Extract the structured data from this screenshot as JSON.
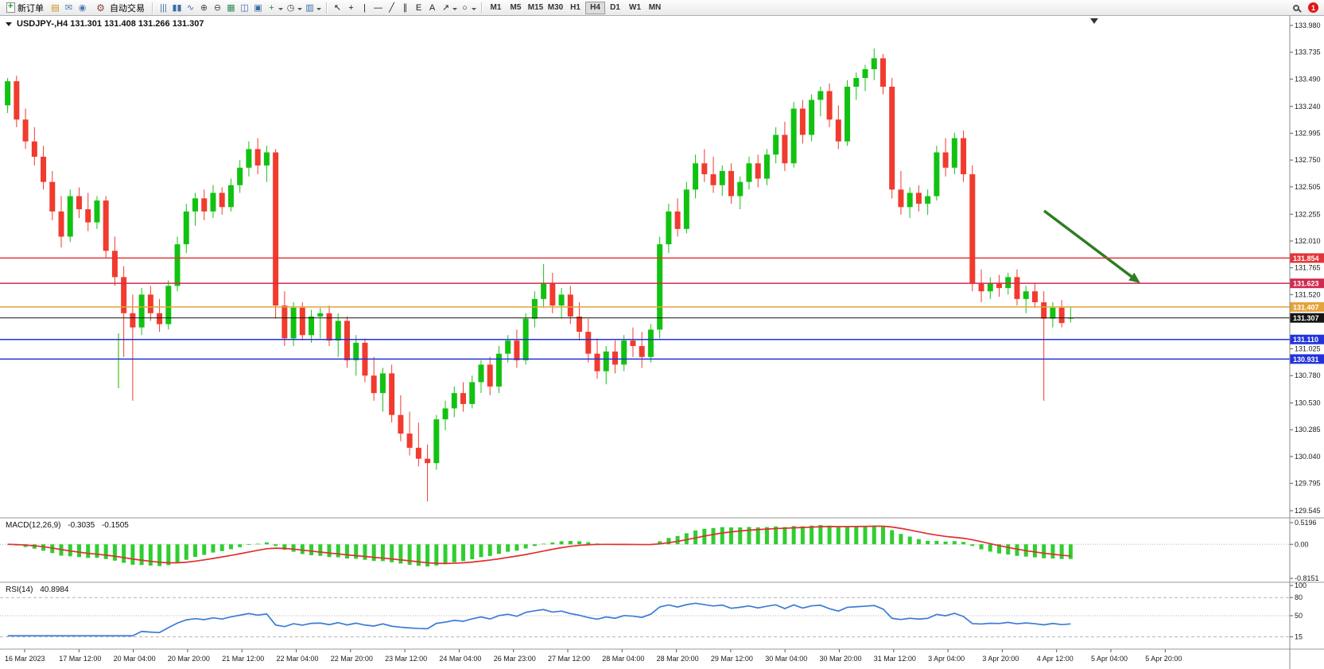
{
  "toolbar": {
    "new_order_label": "新订单",
    "autotrading_label": "自动交易",
    "left_icons": [
      {
        "name": "charts-window-icon",
        "glyph": "▤",
        "color": "#c89020"
      },
      {
        "name": "mail-icon",
        "glyph": "✉",
        "color": "#4a7ab5"
      },
      {
        "name": "community-icon",
        "glyph": "◉",
        "color": "#4a7ab5"
      }
    ],
    "chart_tools": [
      {
        "name": "bar-chart-icon",
        "glyph": "|||",
        "color": "#3a6ea5"
      },
      {
        "name": "candlestick-chart-icon",
        "glyph": "▮▮",
        "color": "#3a6ea5"
      },
      {
        "name": "line-chart-icon",
        "glyph": "∿",
        "color": "#3a6ea5"
      },
      {
        "name": "zoom-in-icon",
        "glyph": "⊕",
        "color": "#454545"
      },
      {
        "name": "zoom-out-icon",
        "glyph": "⊖",
        "color": "#454545"
      },
      {
        "name": "grid-icon",
        "glyph": "▦",
        "color": "#2e8b57"
      },
      {
        "name": "tile-windows-icon",
        "glyph": "◫",
        "color": "#3a6ea5"
      },
      {
        "name": "cascade-windows-icon",
        "glyph": "▣",
        "color": "#3a6ea5"
      },
      {
        "name": "indicators-icon",
        "glyph": "+",
        "color": "#1e8b3e",
        "dropdown": true
      },
      {
        "name": "periods-icon",
        "glyph": "◷",
        "color": "#454545",
        "dropdown": true
      },
      {
        "name": "templates-icon",
        "glyph": "▥",
        "color": "#3a6ea5",
        "dropdown": true
      }
    ],
    "draw_tools": [
      {
        "name": "cursor-icon",
        "glyph": "↖",
        "color": "#222222"
      },
      {
        "name": "crosshair-icon",
        "glyph": "+",
        "color": "#222222"
      },
      {
        "name": "vertical-line-icon",
        "glyph": "|",
        "color": "#222222"
      },
      {
        "name": "horizontal-line-icon",
        "glyph": "—",
        "color": "#222222"
      },
      {
        "name": "trendline-icon",
        "glyph": "╱",
        "color": "#222222"
      },
      {
        "name": "channel-icon",
        "glyph": "∥",
        "color": "#222222"
      },
      {
        "name": "fibonacci-icon",
        "glyph": "E",
        "color": "#222222"
      },
      {
        "name": "text-icon",
        "glyph": "A",
        "color": "#222222"
      },
      {
        "name": "arrows-icon",
        "glyph": "↗",
        "color": "#222222",
        "dropdown": true
      },
      {
        "name": "shapes-icon",
        "glyph": "○",
        "color": "#222222",
        "dropdown": true
      }
    ],
    "timeframes": [
      "M1",
      "M5",
      "M15",
      "M30",
      "H1",
      "H4",
      "D1",
      "W1",
      "MN"
    ],
    "active_timeframe": "H4",
    "notification_badge": "1"
  },
  "chart": {
    "symbol_header": "USDJPY-,H4 131.301 131.408 131.266 131.307",
    "price_axis_labels": [
      "133.980",
      "133.735",
      "133.490",
      "133.240",
      "132.995",
      "132.750",
      "132.505",
      "132.255",
      "132.010",
      "131.765",
      "131.520",
      "131.025",
      "130.780",
      "130.530",
      "130.285",
      "130.040",
      "129.795",
      "129.545"
    ],
    "levels": [
      {
        "price": 131.854,
        "label": "131.854",
        "color": "#e23535"
      },
      {
        "price": 131.623,
        "label": "131.623",
        "color": "#d02a50"
      },
      {
        "price": 131.407,
        "label": "131.407",
        "color": "#e6a23c"
      },
      {
        "price": 131.307,
        "label": "131.307",
        "color": "#151515",
        "bid": true
      },
      {
        "price": 131.11,
        "label": "131.110",
        "color": "#2233dd"
      },
      {
        "price": 130.931,
        "label": "130.931",
        "color": "#2233dd"
      }
    ],
    "bull_color": "#12c212",
    "bear_color": "#f03b2e",
    "arrow_color": "#2e7d22",
    "marker_color": "#66cc44"
  },
  "macd": {
    "title": "MACD(12,26,9)",
    "value_main": "-0.3035",
    "value_signal": "-0.1505",
    "scale_labels": [
      "0.5196",
      "0.00",
      "-0.8151"
    ],
    "range": [
      -0.8151,
      0.5196
    ],
    "hist_color": "#2fce2f",
    "signal_color": "#e03030"
  },
  "rsi": {
    "title": "RSI(14)",
    "value": "40.8984",
    "scale_labels": [
      "100",
      "80",
      "50",
      "15"
    ],
    "levels": [
      80,
      50,
      15
    ],
    "line_color": "#3b7bd6",
    "range": [
      0,
      100
    ]
  },
  "chart_data": {
    "type": "candlestick",
    "symbol": "USDJPY-",
    "timeframe": "H4",
    "quote_open": "131.301",
    "quote_high": "131.408",
    "quote_low": "131.266",
    "quote_close": "131.307",
    "ylim": [
      129.545,
      133.98
    ],
    "x_labels": [
      "16 Mar 2023",
      "17 Mar 12:00",
      "20 Mar 04:00",
      "20 Mar 20:00",
      "21 Mar 12:00",
      "22 Mar 04:00",
      "22 Mar 20:00",
      "23 Mar 12:00",
      "24 Mar 04:00",
      "26 Mar 23:00",
      "27 Mar 12:00",
      "28 Mar 04:00",
      "28 Mar 20:00",
      "29 Mar 12:00",
      "30 Mar 04:00",
      "30 Mar 20:00",
      "31 Mar 12:00",
      "3 Apr 04:00",
      "3 Apr 20:00",
      "4 Apr 12:00",
      "5 Apr 04:00",
      "5 Apr 20:00"
    ],
    "indicators": {
      "macd": {
        "fast": 12,
        "slow": 26,
        "signal": 9
      },
      "rsi": {
        "period": 14
      }
    },
    "ohlc": [
      [
        133.25,
        133.5,
        133.18,
        133.47
      ],
      [
        133.47,
        133.52,
        133.05,
        133.12
      ],
      [
        133.12,
        133.22,
        132.85,
        132.92
      ],
      [
        132.92,
        133.05,
        132.7,
        132.78
      ],
      [
        132.78,
        132.88,
        132.48,
        132.55
      ],
      [
        132.55,
        132.65,
        132.2,
        132.28
      ],
      [
        132.28,
        132.42,
        131.95,
        132.05
      ],
      [
        132.05,
        132.48,
        132.0,
        132.42
      ],
      [
        132.42,
        132.5,
        132.22,
        132.3
      ],
      [
        132.3,
        132.45,
        132.1,
        132.18
      ],
      [
        132.18,
        132.42,
        132.12,
        132.38
      ],
      [
        132.38,
        132.42,
        131.85,
        131.92
      ],
      [
        131.92,
        132.05,
        131.6,
        131.68
      ],
      [
        131.68,
        131.78,
        130.95,
        131.35
      ],
      [
        131.35,
        131.52,
        130.55,
        131.22
      ],
      [
        131.22,
        131.58,
        131.15,
        131.52
      ],
      [
        131.52,
        131.6,
        131.28,
        131.35
      ],
      [
        131.35,
        131.48,
        131.18,
        131.25
      ],
      [
        131.25,
        131.65,
        131.2,
        131.6
      ],
      [
        131.6,
        132.05,
        131.55,
        131.98
      ],
      [
        131.98,
        132.35,
        131.9,
        132.28
      ],
      [
        132.28,
        132.45,
        132.15,
        132.4
      ],
      [
        132.4,
        132.48,
        132.2,
        132.28
      ],
      [
        132.28,
        132.52,
        132.22,
        132.45
      ],
      [
        132.45,
        132.5,
        132.25,
        132.32
      ],
      [
        132.32,
        132.58,
        132.28,
        132.52
      ],
      [
        132.52,
        132.75,
        132.45,
        132.68
      ],
      [
        132.68,
        132.92,
        132.6,
        132.85
      ],
      [
        132.85,
        132.95,
        132.62,
        132.7
      ],
      [
        132.7,
        132.88,
        132.55,
        132.82
      ],
      [
        132.82,
        132.85,
        131.3,
        131.42
      ],
      [
        131.42,
        131.55,
        131.05,
        131.12
      ],
      [
        131.12,
        131.45,
        131.05,
        131.4
      ],
      [
        131.4,
        131.45,
        131.1,
        131.15
      ],
      [
        131.15,
        131.38,
        131.08,
        131.32
      ],
      [
        131.32,
        131.4,
        131.12,
        131.35
      ],
      [
        131.35,
        131.42,
        131.05,
        131.1
      ],
      [
        131.1,
        131.35,
        130.95,
        131.28
      ],
      [
        131.28,
        131.32,
        130.85,
        130.92
      ],
      [
        130.92,
        131.15,
        130.78,
        131.08
      ],
      [
        131.08,
        131.12,
        130.72,
        130.78
      ],
      [
        130.78,
        130.95,
        130.55,
        130.62
      ],
      [
        130.62,
        130.85,
        130.45,
        130.8
      ],
      [
        130.8,
        130.88,
        130.35,
        130.42
      ],
      [
        130.42,
        130.6,
        130.18,
        130.25
      ],
      [
        130.25,
        130.45,
        130.05,
        130.12
      ],
      [
        130.12,
        130.35,
        129.95,
        130.02
      ],
      [
        130.02,
        130.15,
        129.63,
        129.98
      ],
      [
        129.98,
        130.42,
        129.92,
        130.38
      ],
      [
        130.38,
        130.55,
        130.28,
        130.48
      ],
      [
        130.48,
        130.68,
        130.4,
        130.62
      ],
      [
        130.62,
        130.72,
        130.45,
        130.52
      ],
      [
        130.52,
        130.78,
        130.48,
        130.72
      ],
      [
        130.72,
        130.92,
        130.62,
        130.88
      ],
      [
        130.88,
        130.95,
        130.6,
        130.68
      ],
      [
        130.68,
        131.05,
        130.62,
        130.98
      ],
      [
        130.98,
        131.15,
        130.9,
        131.1
      ],
      [
        131.1,
        131.2,
        130.85,
        130.92
      ],
      [
        130.92,
        131.35,
        130.88,
        131.3
      ],
      [
        131.3,
        131.55,
        131.22,
        131.48
      ],
      [
        131.48,
        131.8,
        131.4,
        131.62
      ],
      [
        131.62,
        131.72,
        131.35,
        131.42
      ],
      [
        131.42,
        131.58,
        131.3,
        131.52
      ],
      [
        131.52,
        131.6,
        131.25,
        131.32
      ],
      [
        131.32,
        131.45,
        131.1,
        131.18
      ],
      [
        131.18,
        131.3,
        130.9,
        130.98
      ],
      [
        130.98,
        131.12,
        130.75,
        130.82
      ],
      [
        130.82,
        131.05,
        130.7,
        131.0
      ],
      [
        131.0,
        131.1,
        130.8,
        130.88
      ],
      [
        130.88,
        131.15,
        130.82,
        131.1
      ],
      [
        131.1,
        131.22,
        130.95,
        131.05
      ],
      [
        131.05,
        131.18,
        130.85,
        130.95
      ],
      [
        130.95,
        131.25,
        130.9,
        131.2
      ],
      [
        131.2,
        132.05,
        131.12,
        131.98
      ],
      [
        131.98,
        132.35,
        131.9,
        132.28
      ],
      [
        132.28,
        132.4,
        132.05,
        132.12
      ],
      [
        132.12,
        132.55,
        132.08,
        132.48
      ],
      [
        132.48,
        132.8,
        132.4,
        132.72
      ],
      [
        132.72,
        132.85,
        132.55,
        132.62
      ],
      [
        132.62,
        132.78,
        132.45,
        132.52
      ],
      [
        132.52,
        132.7,
        132.42,
        132.65
      ],
      [
        132.65,
        132.72,
        132.35,
        132.42
      ],
      [
        132.42,
        132.6,
        132.3,
        132.55
      ],
      [
        132.55,
        132.78,
        132.48,
        132.72
      ],
      [
        132.72,
        132.8,
        132.5,
        132.58
      ],
      [
        132.58,
        132.85,
        132.52,
        132.8
      ],
      [
        132.8,
        133.05,
        132.72,
        132.98
      ],
      [
        132.98,
        133.1,
        132.65,
        132.72
      ],
      [
        132.72,
        133.28,
        132.68,
        133.22
      ],
      [
        133.22,
        133.3,
        132.9,
        132.98
      ],
      [
        132.98,
        133.35,
        132.92,
        133.3
      ],
      [
        133.3,
        133.42,
        133.15,
        133.38
      ],
      [
        133.38,
        133.45,
        133.05,
        133.12
      ],
      [
        133.12,
        133.25,
        132.85,
        132.92
      ],
      [
        132.92,
        133.48,
        132.88,
        133.42
      ],
      [
        133.42,
        133.55,
        133.3,
        133.5
      ],
      [
        133.5,
        133.62,
        133.38,
        133.58
      ],
      [
        133.58,
        133.77,
        133.48,
        133.68
      ],
      [
        133.68,
        133.72,
        133.35,
        133.42
      ],
      [
        133.42,
        133.5,
        132.4,
        132.48
      ],
      [
        132.48,
        132.65,
        132.25,
        132.32
      ],
      [
        132.32,
        132.5,
        132.22,
        132.45
      ],
      [
        132.45,
        132.52,
        132.28,
        132.35
      ],
      [
        132.35,
        132.48,
        132.25,
        132.42
      ],
      [
        132.42,
        132.88,
        132.38,
        132.82
      ],
      [
        132.82,
        132.95,
        132.6,
        132.68
      ],
      [
        132.68,
        133.0,
        132.62,
        132.95
      ],
      [
        132.95,
        133.02,
        132.55,
        132.62
      ],
      [
        132.62,
        132.7,
        131.55,
        131.62
      ],
      [
        131.62,
        131.75,
        131.45,
        131.55
      ],
      [
        131.55,
        131.68,
        131.48,
        131.62
      ],
      [
        131.62,
        131.7,
        131.5,
        131.58
      ],
      [
        131.58,
        131.72,
        131.52,
        131.68
      ],
      [
        131.68,
        131.75,
        131.42,
        131.48
      ],
      [
        131.48,
        131.6,
        131.35,
        131.55
      ],
      [
        131.55,
        131.62,
        131.4,
        131.45
      ],
      [
        131.45,
        131.55,
        130.55,
        131.3
      ],
      [
        131.3,
        131.45,
        131.22,
        131.4
      ],
      [
        131.4,
        131.47,
        131.22,
        131.26
      ],
      [
        131.301,
        131.408,
        131.266,
        131.307
      ]
    ]
  }
}
